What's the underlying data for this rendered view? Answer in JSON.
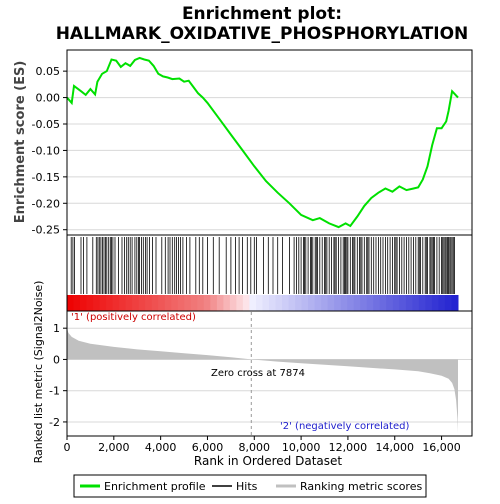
{
  "title_line1": "Enrichment plot:",
  "title_line2": "HALLMARK_OXIDATIVE_PHOSPHORYLATION",
  "top_ylabel": "Enrichment score (ES)",
  "bottom_ylabel": "Ranked list metric (Signal2Noise)",
  "xlabel": "Rank in Ordered Dataset",
  "zero_cross_label": "Zero cross at 7874",
  "pos_label": "'1' (positively correlated)",
  "neg_label": "'2' (negatively correlated)",
  "legend": {
    "enrichment": "Enrichment profile",
    "hits": "Hits",
    "ranking": "Ranking metric scores"
  },
  "colors": {
    "es_line": "#00e000",
    "hits": "#000000",
    "metric_fill": "#c0c0c0",
    "pos_red": "#ee0000",
    "neg_blue": "#2020d0",
    "pos_text": "#cc0000",
    "neg_text": "#2020cc"
  },
  "chart_data": {
    "type": "line",
    "x_range": [
      0,
      17300
    ],
    "x_ticks": [
      "0",
      "2,000",
      "4,000",
      "6,000",
      "8,000",
      "10,000",
      "12,000",
      "14,000",
      "16,000"
    ],
    "es_ylim": [
      -0.26,
      0.09
    ],
    "es_ticks": [
      "0.05",
      "0.00",
      "-0.05",
      "-0.10",
      "-0.15",
      "-0.20",
      "-0.25"
    ],
    "metric_ylim": [
      -2.45,
      1.55
    ],
    "metric_ticks": [
      "1",
      "0",
      "-1",
      "-2"
    ],
    "zero_cross": 7874,
    "n_genes": 16700,
    "es_profile": [
      [
        0,
        0.0
      ],
      [
        200,
        -0.01
      ],
      [
        300,
        0.022
      ],
      [
        600,
        0.012
      ],
      [
        800,
        0.005
      ],
      [
        1000,
        0.016
      ],
      [
        1200,
        0.006
      ],
      [
        1300,
        0.03
      ],
      [
        1500,
        0.045
      ],
      [
        1700,
        0.05
      ],
      [
        1900,
        0.072
      ],
      [
        2100,
        0.07
      ],
      [
        2300,
        0.058
      ],
      [
        2500,
        0.065
      ],
      [
        2700,
        0.06
      ],
      [
        2900,
        0.071
      ],
      [
        3100,
        0.075
      ],
      [
        3300,
        0.072
      ],
      [
        3500,
        0.07
      ],
      [
        3700,
        0.06
      ],
      [
        3900,
        0.045
      ],
      [
        4100,
        0.04
      ],
      [
        4300,
        0.038
      ],
      [
        4500,
        0.035
      ],
      [
        4800,
        0.036
      ],
      [
        5000,
        0.03
      ],
      [
        5200,
        0.032
      ],
      [
        5400,
        0.02
      ],
      [
        5600,
        0.008
      ],
      [
        5800,
        0.0
      ],
      [
        6000,
        -0.01
      ],
      [
        6500,
        -0.04
      ],
      [
        7000,
        -0.07
      ],
      [
        7500,
        -0.1
      ],
      [
        8000,
        -0.13
      ],
      [
        8500,
        -0.158
      ],
      [
        9000,
        -0.18
      ],
      [
        9500,
        -0.2
      ],
      [
        10000,
        -0.222
      ],
      [
        10500,
        -0.232
      ],
      [
        10800,
        -0.228
      ],
      [
        11200,
        -0.238
      ],
      [
        11600,
        -0.245
      ],
      [
        11900,
        -0.238
      ],
      [
        12100,
        -0.243
      ],
      [
        12400,
        -0.225
      ],
      [
        12700,
        -0.205
      ],
      [
        13000,
        -0.19
      ],
      [
        13300,
        -0.18
      ],
      [
        13600,
        -0.172
      ],
      [
        13900,
        -0.178
      ],
      [
        14200,
        -0.168
      ],
      [
        14500,
        -0.175
      ],
      [
        14800,
        -0.172
      ],
      [
        15000,
        -0.17
      ],
      [
        15200,
        -0.155
      ],
      [
        15400,
        -0.13
      ],
      [
        15600,
        -0.09
      ],
      [
        15800,
        -0.058
      ],
      [
        16000,
        -0.058
      ],
      [
        16200,
        -0.045
      ],
      [
        16300,
        -0.025
      ],
      [
        16450,
        0.012
      ],
      [
        16600,
        0.005
      ],
      [
        16700,
        0.0
      ]
    ],
    "hit_ranks": [
      180,
      250,
      320,
      600,
      700,
      850,
      1100,
      1250,
      1320,
      1380,
      1450,
      1520,
      1580,
      1650,
      1700,
      1780,
      1850,
      1900,
      1960,
      2050,
      2200,
      2350,
      2450,
      2550,
      2620,
      2700,
      2780,
      2900,
      2980,
      3050,
      3100,
      3180,
      3260,
      3350,
      3420,
      3520,
      3650,
      3800,
      4050,
      4200,
      4320,
      4400,
      4500,
      4600,
      4680,
      4760,
      4850,
      4950,
      5100,
      5250,
      5500,
      5650,
      5800,
      6000,
      6250,
      6500,
      6800,
      7000,
      7200,
      7350,
      7500,
      7700,
      7850,
      8000,
      8100,
      8400,
      8600,
      8800,
      9000,
      9200,
      9500,
      9700,
      9800,
      9900,
      10000,
      10100,
      10150,
      10200,
      10300,
      10400,
      10450,
      10500,
      10600,
      10650,
      10700,
      10800,
      10900,
      11000,
      11050,
      11100,
      11200,
      11300,
      11400,
      11450,
      11500,
      11600,
      11700,
      11800,
      11850,
      11900,
      11950,
      12000,
      12100,
      12200,
      12250,
      12300,
      12400,
      12500,
      12550,
      12600,
      12700,
      12800,
      12850,
      12900,
      13000,
      13100,
      13200,
      13300,
      13400,
      13500,
      13600,
      13700,
      13800,
      13900,
      14000,
      14050,
      14100,
      14200,
      14300,
      14400,
      14500,
      14600,
      14700,
      14800,
      14900,
      15000,
      15050,
      15100,
      15200,
      15300,
      15350,
      15400,
      15500,
      15550,
      15600,
      15650,
      15700,
      15800,
      15900,
      16000,
      16050,
      16100,
      16150,
      16200,
      16250,
      16300,
      16350,
      16400,
      16450,
      16500,
      16550
    ],
    "metric_profile": [
      [
        0,
        1.0
      ],
      [
        60,
        0.85
      ],
      [
        200,
        0.72
      ],
      [
        500,
        0.6
      ],
      [
        1000,
        0.5
      ],
      [
        2000,
        0.4
      ],
      [
        3000,
        0.32
      ],
      [
        4000,
        0.26
      ],
      [
        5000,
        0.2
      ],
      [
        6000,
        0.14
      ],
      [
        7000,
        0.07
      ],
      [
        7874,
        0.0
      ],
      [
        9000,
        -0.07
      ],
      [
        10000,
        -0.12
      ],
      [
        11000,
        -0.17
      ],
      [
        12000,
        -0.22
      ],
      [
        13000,
        -0.27
      ],
      [
        14000,
        -0.32
      ],
      [
        15000,
        -0.38
      ],
      [
        15500,
        -0.44
      ],
      [
        16000,
        -0.52
      ],
      [
        16300,
        -0.62
      ],
      [
        16450,
        -0.75
      ],
      [
        16550,
        -0.95
      ],
      [
        16620,
        -1.3
      ],
      [
        16680,
        -1.9
      ],
      [
        16700,
        -2.35
      ]
    ]
  }
}
